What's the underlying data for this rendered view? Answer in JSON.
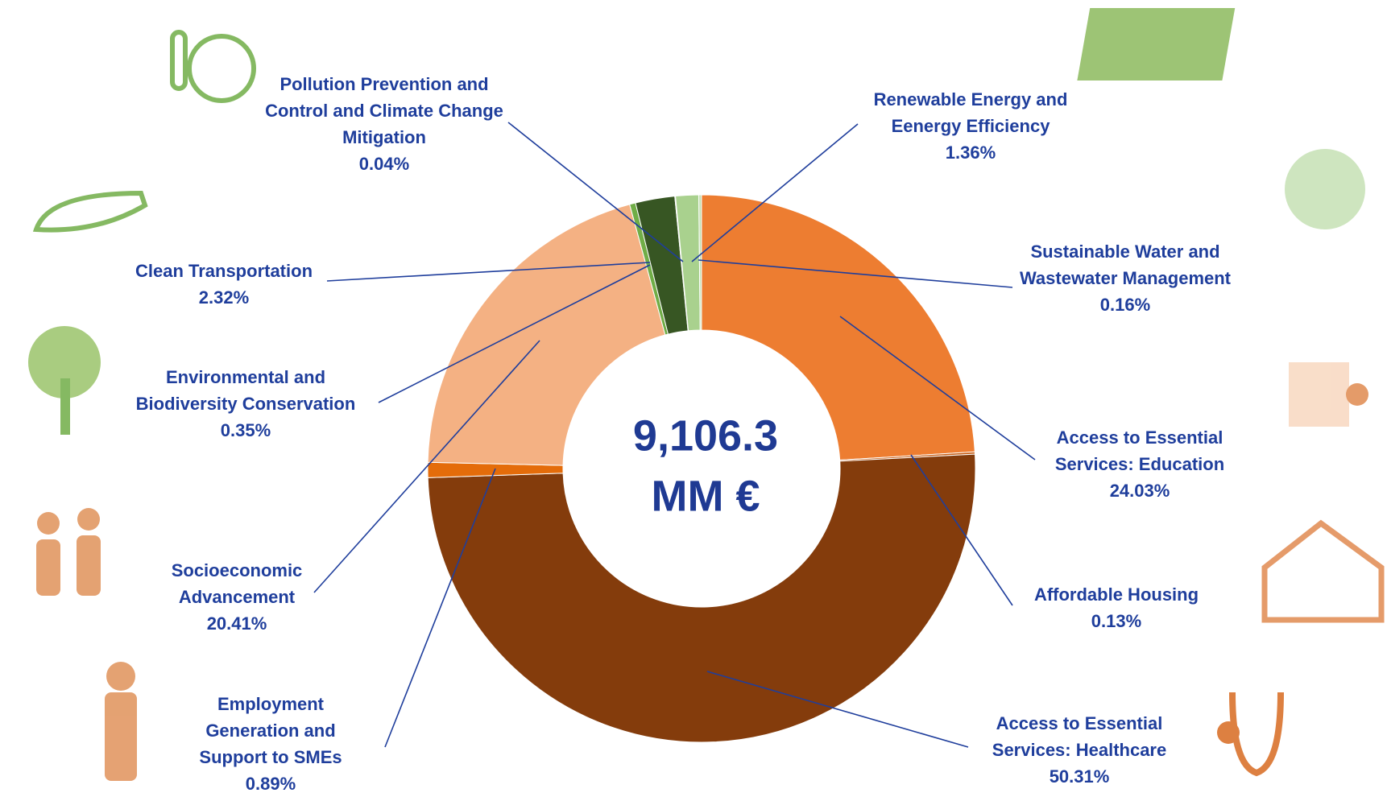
{
  "chart_data": {
    "type": "donut",
    "categories": [
      "Access to Essential Services:  Education",
      "Affordable Housing",
      "Access to Essential Services:  Healthcare",
      "Employment Generation and Support to SMEs",
      "Socioeconomic Advancement",
      "Environmental and Biodiversity Conservation",
      "Clean Transportation",
      "Pollution Prevention and Control and Climate Change Mitigation",
      "Renewable Energy and Eenergy Efficiency",
      "Sustainable Water and Wastewater Management"
    ],
    "values": [
      24.03,
      0.13,
      50.31,
      0.89,
      20.41,
      0.35,
      2.32,
      0.04,
      1.36,
      0.16
    ],
    "value_labels": [
      "24.03%",
      "0.13%",
      "50.31%",
      "0.89%",
      "20.41%",
      "0.35%",
      "2.32%",
      "0.04%",
      "1.36%",
      "0.16%"
    ],
    "colors": [
      "#ED7D31",
      "#C55A11",
      "#843C0C",
      "#E46C0A",
      "#F4B183",
      "#70AD47",
      "#375623",
      "#548235",
      "#A9D18E",
      "#C5E0B4"
    ],
    "center_value": "9,106.3",
    "center_unit": "MM €"
  }
}
